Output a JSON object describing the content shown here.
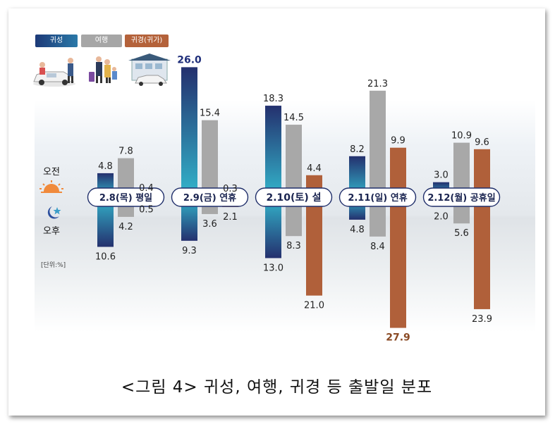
{
  "legend": {
    "items": [
      {
        "label": "귀성",
        "color": "#1f3a7a"
      },
      {
        "label": "여행",
        "color": "#a6a6a6"
      },
      {
        "label": "귀경(귀가)",
        "color": "#b4623a"
      }
    ]
  },
  "side": {
    "am": "오전",
    "pm": "오후",
    "unit": "[단위:%]"
  },
  "caption": "<그림 4> 귀성, 여행, 귀경 등 출발일 분포",
  "colors": {
    "gray": "#a8a8a8",
    "brown": "#b0603a",
    "navy_top": "#24306e",
    "teal_mid": "#33b6cc",
    "highlight_navy": "#1f2e7a",
    "highlight_brown": "#8a4a24"
  },
  "chart_data": {
    "type": "bar",
    "title": "귀성, 여행, 귀경 등 출발일 분포",
    "unit": "%",
    "categories": [
      "2.8(목) 평일",
      "2.9(금) 연휴",
      "2.10(토) 설",
      "2.11(일) 연휴",
      "2.12(월) 공휴일"
    ],
    "series": [
      {
        "name": "귀성",
        "am": [
          4.8,
          26.0,
          18.3,
          8.2,
          3.0
        ],
        "pm": [
          10.6,
          9.3,
          13.0,
          4.8,
          2.0
        ]
      },
      {
        "name": "여행",
        "am": [
          7.8,
          15.4,
          14.5,
          21.3,
          10.9
        ],
        "pm": [
          4.2,
          3.6,
          8.3,
          8.4,
          5.6
        ]
      },
      {
        "name": "귀경(귀가)",
        "am": [
          0.4,
          0.3,
          4.4,
          9.9,
          9.6
        ],
        "pm": [
          0.5,
          2.1,
          21.0,
          27.9,
          23.9
        ]
      }
    ],
    "highlights": [
      {
        "series": "귀성",
        "category": "2.9(금) 연휴",
        "half": "am",
        "value": 26.0
      },
      {
        "series": "귀경(귀가)",
        "category": "2.11(일) 연휴",
        "half": "pm",
        "value": 27.9
      }
    ],
    "am_label": "오전",
    "pm_label": "오후"
  }
}
